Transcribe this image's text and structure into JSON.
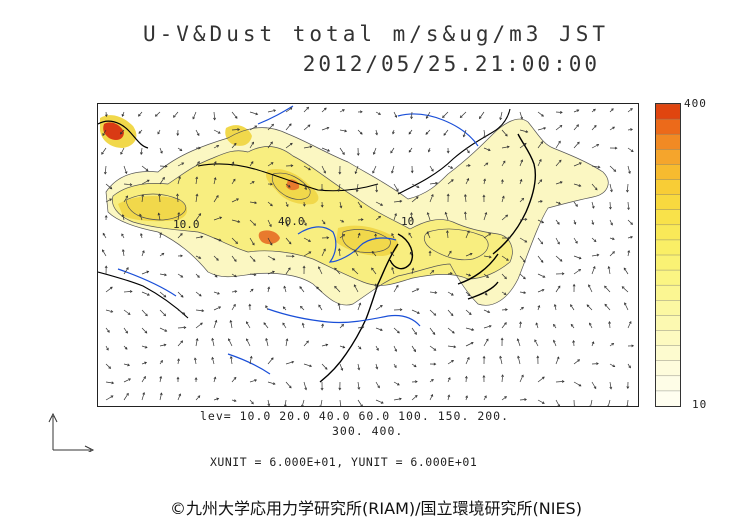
{
  "title": {
    "line1": "U-V&Dust total m/s&ug/m3 JST",
    "line2": "2012/05/25.21:00:00"
  },
  "map": {
    "contour_labels": [
      "10.0",
      "40.0",
      "10"
    ],
    "colors": {
      "low": "#fbf7c2",
      "mid": "#f8ee80",
      "high": "#f1d84b",
      "peak": "#e87a2d",
      "max": "#d93a14",
      "coast": "#000000",
      "rivers": "#1a4fd8",
      "borders": "#555555"
    }
  },
  "colorbar": {
    "max_label": "400",
    "min_label": "10",
    "colors": [
      "#e0450f",
      "#ec6a1a",
      "#f18a24",
      "#f5a52c",
      "#f7bb2f",
      "#f8cd36",
      "#f8d93f",
      "#f9e24a",
      "#f9e958",
      "#faef66",
      "#faf274",
      "#fbf583",
      "#fbf692",
      "#fcf8a2",
      "#fcf9b1",
      "#fdfac0",
      "#fdfbcf",
      "#fefcdc",
      "#fefde7",
      "#fffef0"
    ]
  },
  "levels": {
    "line1": "lev= 10.0 20.0 40.0 60.0 100. 150. 200.",
    "line2": "300. 400."
  },
  "units": {
    "text": "XUNIT = 6.000E+01, YUNIT = 6.000E+01"
  },
  "copyright": {
    "text": "©九州大学応用力学研究所(RIAM)/国立環境研究所(NIES)"
  }
}
